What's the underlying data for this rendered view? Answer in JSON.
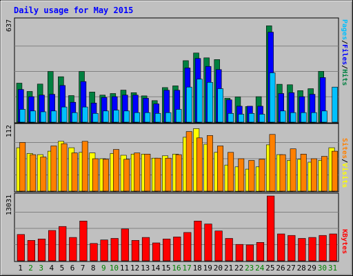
{
  "title": "Daily usage for May 2015",
  "colors": {
    "background": "#c0c0c0",
    "panel": "#c0c0c0",
    "title": "#0000ff",
    "hits": "#008040",
    "files": "#0000ff",
    "pages": "#00c0ff",
    "visits": "#ffff00",
    "sites": "#ff8000",
    "kbytes": "#ff0000",
    "weekend_day": "#008000",
    "weekday_day": "#000000"
  },
  "legends": {
    "top": [
      {
        "text": "Pages",
        "color": "#00c0ff"
      },
      {
        "text": "/",
        "color": "#000000"
      },
      {
        "text": "Files",
        "color": "#0000ff"
      },
      {
        "text": "/",
        "color": "#000000"
      },
      {
        "text": "Hits",
        "color": "#008040"
      }
    ],
    "middle": [
      {
        "text": "Sites",
        "color": "#ff8000"
      },
      {
        "text": "/",
        "color": "#000000"
      },
      {
        "text": "Visits",
        "color": "#ffff00"
      }
    ],
    "bottom": [
      {
        "text": "KBytes",
        "color": "#ff0000"
      }
    ]
  },
  "chart_data": [
    {
      "type": "bar",
      "panel": "top",
      "ymax_label": "637",
      "ymax": 637,
      "categories": [
        "1",
        "2",
        "3",
        "4",
        "5",
        "6",
        "7",
        "8",
        "9",
        "10",
        "11",
        "12",
        "13",
        "14",
        "15",
        "16",
        "17",
        "18",
        "19",
        "20",
        "21",
        "22",
        "23",
        "24",
        "25",
        "26",
        "27",
        "28",
        "29",
        "30",
        "31"
      ],
      "weekend": [
        false,
        true,
        true,
        false,
        false,
        false,
        false,
        false,
        true,
        true,
        false,
        false,
        false,
        false,
        false,
        true,
        true,
        false,
        false,
        false,
        false,
        false,
        true,
        true,
        false,
        false,
        false,
        false,
        false,
        true,
        true
      ],
      "series": [
        {
          "name": "Hits",
          "values": [
            245,
            193,
            239,
            318,
            285,
            167,
            318,
            189,
            170,
            180,
            201,
            185,
            165,
            135,
            217,
            228,
            386,
            434,
            404,
            393,
            150,
            158,
            98,
            160,
            605,
            238,
            235,
            198,
            210,
            319,
            0
          ]
        },
        {
          "name": "Files",
          "values": [
            205,
            160,
            170,
            175,
            230,
            125,
            255,
            120,
            155,
            160,
            170,
            170,
            150,
            115,
            200,
            200,
            340,
            400,
            350,
            330,
            140,
            100,
            100,
            100,
            565,
            180,
            185,
            160,
            175,
            280,
            0
          ]
        },
        {
          "name": "Pages",
          "values": [
            80,
            70,
            65,
            70,
            95,
            60,
            95,
            55,
            70,
            75,
            70,
            60,
            60,
            55,
            60,
            80,
            220,
            270,
            250,
            210,
            55,
            50,
            55,
            50,
            310,
            70,
            60,
            60,
            60,
            70,
            220
          ]
        }
      ]
    },
    {
      "type": "bar",
      "panel": "middle",
      "ymax_label": "112",
      "ymax": 112,
      "series": [
        {
          "name": "Visits",
          "values": [
            75,
            65,
            63,
            69,
            86,
            75,
            67,
            66,
            56,
            65,
            62,
            64,
            64,
            57,
            61,
            64,
            93,
            108,
            81,
            67,
            45,
            42,
            38,
            42,
            80,
            63,
            53,
            55,
            50,
            53,
            75
          ]
        },
        {
          "name": "Sites",
          "values": [
            84,
            63,
            59,
            78,
            82,
            66,
            86,
            56,
            55,
            72,
            55,
            66,
            64,
            57,
            57,
            63,
            103,
            92,
            96,
            78,
            67,
            56,
            53,
            55,
            98,
            63,
            73,
            64,
            56,
            60,
            69
          ]
        }
      ]
    },
    {
      "type": "bar",
      "panel": "bottom",
      "ymax_label": "13031",
      "ymax": 13031,
      "series": [
        {
          "name": "KBytes",
          "values": [
            5300,
            4100,
            4400,
            6100,
            6900,
            4700,
            8000,
            3500,
            4200,
            4500,
            6400,
            4100,
            4700,
            3600,
            4400,
            4800,
            5700,
            8000,
            7400,
            6000,
            4500,
            3300,
            3200,
            3700,
            13031,
            5400,
            5100,
            4500,
            4700,
            5100,
            5400
          ]
        }
      ]
    }
  ]
}
